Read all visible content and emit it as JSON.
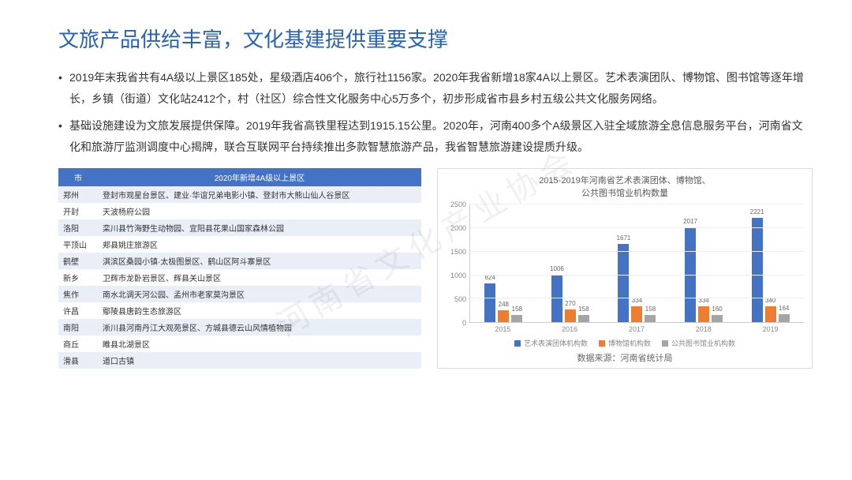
{
  "title": "文旅产品供给丰富，文化基建提供重要支撑",
  "bullets": [
    "2019年末我省共有4A级以上景区185处，星级酒店406个，旅行社1156家。2020年我省新增18家4A以上景区。艺术表演团队、博物馆、图书馆等逐年增长，乡镇（街道）文化站2412个，村（社区）综合性文化服务中心5万多个，初步形成省市县乡村五级公共文化服务网络。",
    "基础设施建设为文旅发展提供保障。2019年我省高铁里程达到1915.15公里。2020年，河南400多个A级景区入驻全域旅游全息信息服务平台，河南省文化和旅游厅监测调度中心揭牌，联合互联网平台持续推出多款智慧旅游产品，我省智慧旅游建设提质升级。"
  ],
  "table": {
    "headers": [
      "市",
      "2020年新增4A级以上景区"
    ],
    "rows": [
      [
        "郑州",
        "登封市观星台景区、建业·华谊兄弟电影小镇、登封市大熊山仙人谷景区"
      ],
      [
        "开封",
        "天波杨府公园"
      ],
      [
        "洛阳",
        "栾川县竹海野生动物园、宜阳县花果山国家森林公园"
      ],
      [
        "平顶山",
        "郏县姚庄旅游区"
      ],
      [
        "鹤壁",
        "淇滨区桑园小镇·太极图景区、鹤山区阿斗寨景区"
      ],
      [
        "新乡",
        "卫辉市龙卧岩景区、辉县关山景区"
      ],
      [
        "焦作",
        "南水北调天河公园、孟州市老家莫沟景区"
      ],
      [
        "许昌",
        "鄢陵县唐韵生态旅游区"
      ],
      [
        "南阳",
        "淅川县河南丹江大观苑景区、方城县德云山风情植物园"
      ],
      [
        "商丘",
        "睢县北湖景区"
      ],
      [
        "滑县",
        "道口古镇"
      ]
    ]
  },
  "chart": {
    "title_line1": "2015-2019年河南省艺术表演团体、博物馆、",
    "title_line2": "公共图书馆业机构数量",
    "ymax": 2500,
    "ytick_step": 500,
    "yticks": [
      0,
      500,
      1000,
      1500,
      2000,
      2500
    ],
    "categories": [
      "2015",
      "2016",
      "2017",
      "2018",
      "2019"
    ],
    "series": [
      {
        "name": "艺术表演团体机构数",
        "color": "#4472c4",
        "values": [
          824,
          1006,
          1671,
          2017,
          2221
        ]
      },
      {
        "name": "博物馆机构数",
        "color": "#ed7d31",
        "values": [
          248,
          270,
          334,
          334,
          340
        ]
      },
      {
        "name": "公共图书馆业机构数",
        "color": "#a5a5a5",
        "values": [
          158,
          158,
          158,
          160,
          164
        ]
      }
    ],
    "source": "数据来源：河南省统计局"
  },
  "watermark": "河南省文化产业协会"
}
